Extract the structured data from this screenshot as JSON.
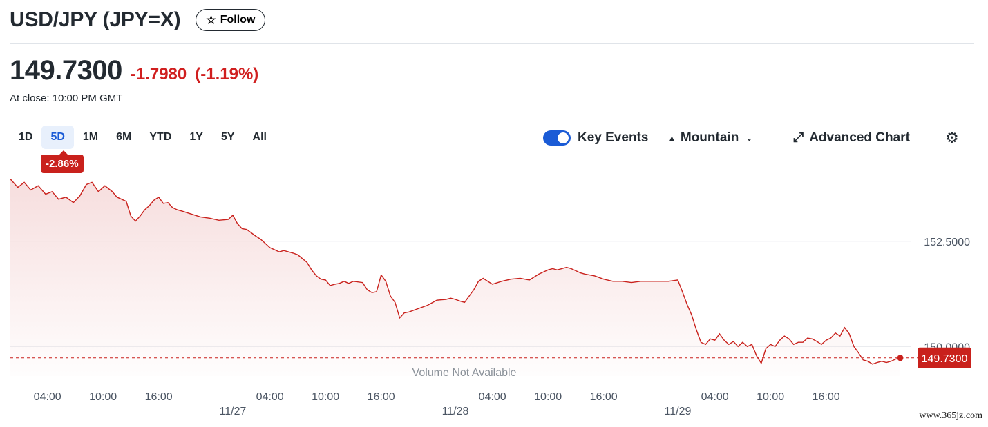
{
  "header": {
    "title": "USD/JPY (JPY=X)",
    "follow_label": "Follow",
    "price": "149.7300",
    "change": "-1.7980",
    "change_pct": "(-1.19%)",
    "close_label": "At close: 10:00 PM GMT"
  },
  "ranges": {
    "items": [
      "1D",
      "5D",
      "1M",
      "6M",
      "YTD",
      "1Y",
      "5Y",
      "All"
    ],
    "active": "5D",
    "active_change": "-2.86%"
  },
  "controls": {
    "key_events_label": "Key Events",
    "key_events_on": true,
    "chart_type_label": "Mountain",
    "advanced_label": "Advanced Chart",
    "icons": [
      "star-icon",
      "mountain-icon",
      "chevron-down-icon",
      "expand-icon",
      "gear-icon"
    ]
  },
  "colors": {
    "line": "#c9211c",
    "fill": "#f6dcdc",
    "accent": "#1a5bd6",
    "negative": "#d01f1f"
  },
  "chart_data": {
    "type": "area",
    "ylim": [
      149.3,
      154.3
    ],
    "y_ticks": [
      {
        "value": 152.5,
        "label": "152.5000"
      },
      {
        "value": 150.0,
        "label": "150.0000"
      }
    ],
    "last_value": 149.73,
    "last_label": "149.7300",
    "volume_label": "Volume Not Available",
    "x_ticks": [
      {
        "t": 4,
        "label": "04:00"
      },
      {
        "t": 10,
        "label": "10:00"
      },
      {
        "t": 16,
        "label": "16:00"
      },
      {
        "t": 28,
        "label": "04:00"
      },
      {
        "t": 34,
        "label": "10:00"
      },
      {
        "t": 40,
        "label": "16:00"
      },
      {
        "t": 52,
        "label": "04:00"
      },
      {
        "t": 58,
        "label": "10:00"
      },
      {
        "t": 64,
        "label": "16:00"
      },
      {
        "t": 76,
        "label": "04:00"
      },
      {
        "t": 82,
        "label": "10:00"
      },
      {
        "t": 88,
        "label": "16:00"
      }
    ],
    "date_labels": [
      {
        "t": 24,
        "label": "11/27"
      },
      {
        "t": 48,
        "label": "11/28"
      },
      {
        "t": 72,
        "label": "11/29"
      }
    ],
    "series": [
      {
        "points": [
          [
            0.0,
            153.98
          ],
          [
            0.8,
            153.78
          ],
          [
            1.5,
            153.9
          ],
          [
            2.2,
            153.72
          ],
          [
            3.0,
            153.82
          ],
          [
            3.8,
            153.62
          ],
          [
            4.5,
            153.68
          ],
          [
            5.2,
            153.5
          ],
          [
            6.0,
            153.55
          ],
          [
            6.8,
            153.42
          ],
          [
            7.5,
            153.58
          ],
          [
            8.2,
            153.85
          ],
          [
            8.8,
            153.9
          ],
          [
            9.5,
            153.68
          ],
          [
            10.2,
            153.82
          ],
          [
            11.0,
            153.68
          ],
          [
            11.5,
            153.55
          ],
          [
            12.0,
            153.5
          ],
          [
            12.5,
            153.45
          ],
          [
            13.0,
            153.1
          ],
          [
            13.5,
            152.98
          ],
          [
            14.0,
            153.1
          ],
          [
            14.5,
            153.25
          ],
          [
            15.0,
            153.35
          ],
          [
            15.5,
            153.48
          ],
          [
            16.0,
            153.55
          ],
          [
            16.5,
            153.4
          ],
          [
            17.0,
            153.42
          ],
          [
            17.5,
            153.3
          ],
          [
            18.0,
            153.25
          ],
          [
            18.5,
            153.22
          ],
          [
            19.5,
            153.15
          ],
          [
            20.5,
            153.08
          ],
          [
            21.5,
            153.05
          ],
          [
            22.5,
            153.0
          ],
          [
            23.5,
            153.02
          ],
          [
            24.0,
            153.12
          ],
          [
            24.5,
            152.92
          ],
          [
            25.0,
            152.8
          ],
          [
            25.5,
            152.78
          ],
          [
            26.0,
            152.7
          ],
          [
            26.5,
            152.62
          ],
          [
            27.0,
            152.55
          ],
          [
            27.5,
            152.45
          ],
          [
            28.0,
            152.35
          ],
          [
            28.5,
            152.3
          ],
          [
            29.0,
            152.25
          ],
          [
            29.5,
            152.28
          ],
          [
            30.5,
            152.22
          ],
          [
            31.0,
            152.18
          ],
          [
            32.0,
            152.0
          ],
          [
            32.5,
            151.82
          ],
          [
            33.0,
            151.68
          ],
          [
            33.5,
            151.6
          ],
          [
            34.0,
            151.58
          ],
          [
            34.5,
            151.45
          ],
          [
            35.0,
            151.48
          ],
          [
            35.5,
            151.5
          ],
          [
            36.0,
            151.55
          ],
          [
            36.5,
            151.5
          ],
          [
            37.0,
            151.55
          ],
          [
            38.0,
            151.52
          ],
          [
            38.5,
            151.35
          ],
          [
            39.0,
            151.28
          ],
          [
            39.5,
            151.3
          ],
          [
            40.0,
            151.7
          ],
          [
            40.5,
            151.55
          ],
          [
            41.0,
            151.2
          ],
          [
            41.5,
            151.05
          ],
          [
            42.0,
            150.68
          ],
          [
            42.5,
            150.8
          ],
          [
            43.0,
            150.82
          ],
          [
            44.0,
            150.9
          ],
          [
            45.0,
            150.98
          ],
          [
            46.0,
            151.1
          ],
          [
            47.0,
            151.12
          ],
          [
            47.5,
            151.15
          ],
          [
            48.0,
            151.12
          ],
          [
            48.5,
            151.08
          ],
          [
            49.0,
            151.05
          ],
          [
            49.5,
            151.2
          ],
          [
            50.0,
            151.35
          ],
          [
            50.5,
            151.55
          ],
          [
            51.0,
            151.62
          ],
          [
            51.5,
            151.55
          ],
          [
            52.0,
            151.48
          ],
          [
            53.0,
            151.55
          ],
          [
            54.0,
            151.6
          ],
          [
            55.0,
            151.62
          ],
          [
            56.0,
            151.58
          ],
          [
            57.0,
            151.72
          ],
          [
            58.0,
            151.82
          ],
          [
            58.5,
            151.85
          ],
          [
            59.0,
            151.82
          ],
          [
            60.0,
            151.88
          ],
          [
            60.5,
            151.85
          ],
          [
            61.0,
            151.8
          ],
          [
            61.5,
            151.75
          ],
          [
            62.0,
            151.72
          ],
          [
            63.0,
            151.68
          ],
          [
            64.0,
            151.6
          ],
          [
            65.0,
            151.55
          ],
          [
            66.0,
            151.55
          ],
          [
            67.0,
            151.52
          ],
          [
            68.0,
            151.55
          ],
          [
            69.0,
            151.55
          ],
          [
            70.0,
            151.55
          ],
          [
            71.0,
            151.55
          ],
          [
            72.0,
            151.58
          ],
          [
            72.5,
            151.3
          ],
          [
            73.0,
            151.0
          ],
          [
            73.5,
            150.75
          ],
          [
            74.0,
            150.4
          ],
          [
            74.5,
            150.1
          ],
          [
            75.0,
            150.05
          ],
          [
            75.5,
            150.18
          ],
          [
            76.0,
            150.15
          ],
          [
            76.5,
            150.3
          ],
          [
            77.0,
            150.15
          ],
          [
            77.5,
            150.05
          ],
          [
            78.0,
            150.12
          ],
          [
            78.5,
            150.0
          ],
          [
            79.0,
            150.1
          ],
          [
            79.5,
            150.0
          ],
          [
            80.0,
            150.05
          ],
          [
            80.5,
            149.78
          ],
          [
            81.0,
            149.6
          ],
          [
            81.5,
            149.95
          ],
          [
            82.0,
            150.05
          ],
          [
            82.5,
            150.0
          ],
          [
            83.0,
            150.15
          ],
          [
            83.5,
            150.25
          ],
          [
            84.0,
            150.18
          ],
          [
            84.5,
            150.05
          ],
          [
            85.0,
            150.1
          ],
          [
            85.5,
            150.1
          ],
          [
            86.0,
            150.2
          ],
          [
            86.5,
            150.18
          ],
          [
            87.0,
            150.12
          ],
          [
            87.5,
            150.05
          ],
          [
            88.0,
            150.15
          ],
          [
            88.5,
            150.2
          ],
          [
            89.0,
            150.32
          ],
          [
            89.5,
            150.25
          ],
          [
            90.0,
            150.45
          ],
          [
            90.5,
            150.3
          ],
          [
            91.0,
            150.0
          ],
          [
            91.5,
            149.85
          ],
          [
            92.0,
            149.68
          ],
          [
            92.5,
            149.65
          ],
          [
            93.0,
            149.58
          ],
          [
            93.5,
            149.62
          ],
          [
            94.0,
            149.65
          ],
          [
            94.5,
            149.62
          ],
          [
            95.0,
            149.65
          ],
          [
            95.5,
            149.7
          ],
          [
            96.0,
            149.73
          ]
        ]
      }
    ]
  },
  "watermark": "www.365jz.com"
}
